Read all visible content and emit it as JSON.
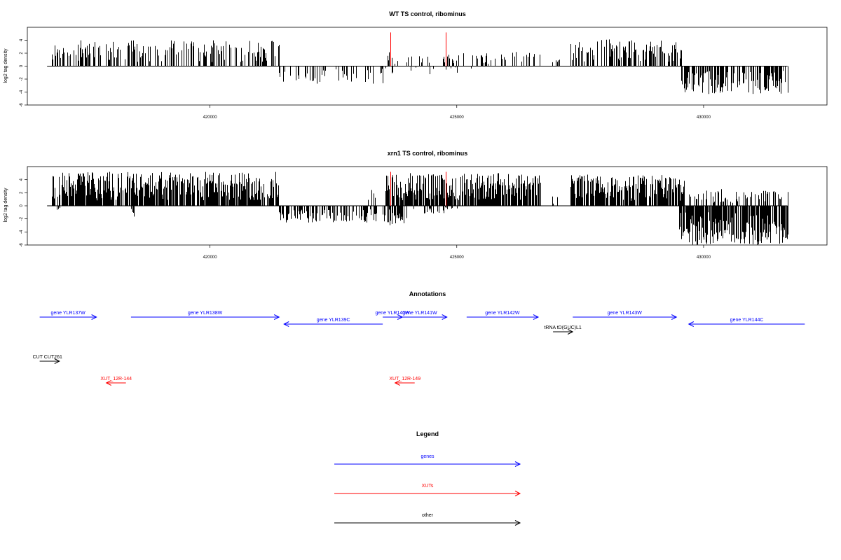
{
  "colors": {
    "gene": "#0000ff",
    "xut": "#ff0000",
    "other": "#000000",
    "signal": "#000000",
    "marker": "#ff0000"
  },
  "tracks": [
    {
      "title": "WT TS control, ribominus",
      "ylabel": "log2 tag density"
    },
    {
      "title": "xrn1 TS control, ribominus",
      "ylabel": "log2 tag density"
    }
  ],
  "annotations_title": "Annotations",
  "legend_title": "Legend",
  "legend": [
    {
      "label": "genes",
      "type": "gene"
    },
    {
      "label": "XUTs",
      "type": "xut"
    },
    {
      "label": "other",
      "type": "other"
    }
  ],
  "chart_data": [
    {
      "type": "bar",
      "title": "WT TS control, ribominus",
      "ylabel": "log2 tag density",
      "xlabel": "",
      "xlim": [
        416300,
        432500
      ],
      "ylim": [
        -6,
        6
      ],
      "x_ticks": [
        420000,
        425000,
        430000
      ],
      "y_ticks": [
        4,
        2,
        0,
        -2,
        -4,
        -6
      ],
      "baseline_range": [
        416700,
        431700
      ],
      "markers": [
        423650,
        424780
      ],
      "plus_regions": [
        {
          "start": 416800,
          "end": 421400,
          "max": 4.0,
          "density": 0.45,
          "seed": 11
        },
        {
          "start": 423600,
          "end": 423680,
          "max": 3.0,
          "density": 0.5,
          "seed": 12
        },
        {
          "start": 423700,
          "end": 424750,
          "max": 1.6,
          "density": 0.15,
          "seed": 13
        },
        {
          "start": 424800,
          "end": 426700,
          "max": 2.2,
          "density": 0.3,
          "seed": 14
        },
        {
          "start": 426900,
          "end": 427200,
          "max": 1.5,
          "density": 0.2,
          "seed": 15
        },
        {
          "start": 427300,
          "end": 429550,
          "max": 4.2,
          "density": 0.5,
          "seed": 16
        }
      ],
      "minus_regions": [
        {
          "start": 421400,
          "end": 423500,
          "max": 2.8,
          "density": 0.25,
          "seed": 21
        },
        {
          "start": 423500,
          "end": 425300,
          "max": 1.3,
          "density": 0.08,
          "seed": 22
        },
        {
          "start": 429550,
          "end": 431700,
          "max": 4.3,
          "density": 0.6,
          "seed": 23
        }
      ]
    },
    {
      "type": "bar",
      "title": "xrn1 TS control, ribominus",
      "ylabel": "log2 tag density",
      "xlabel": "",
      "xlim": [
        416300,
        432500
      ],
      "ylim": [
        -6,
        6
      ],
      "x_ticks": [
        420000,
        425000,
        430000
      ],
      "y_ticks": [
        4,
        2,
        0,
        -2,
        -4,
        -6
      ],
      "baseline_range": [
        416700,
        431700
      ],
      "markers": [
        423650,
        424780
      ],
      "plus_regions": [
        {
          "start": 416800,
          "end": 421400,
          "max": 5.2,
          "density": 0.85,
          "seed": 31
        },
        {
          "start": 423200,
          "end": 423400,
          "max": 2.5,
          "density": 0.4,
          "seed": 32
        },
        {
          "start": 423550,
          "end": 426700,
          "max": 5.0,
          "density": 0.8,
          "seed": 33
        },
        {
          "start": 426900,
          "end": 427100,
          "max": 1.5,
          "density": 0.2,
          "seed": 34
        },
        {
          "start": 427300,
          "end": 429600,
          "max": 4.8,
          "density": 0.85,
          "seed": 35
        },
        {
          "start": 429700,
          "end": 431700,
          "max": 2.6,
          "density": 0.3,
          "seed": 36
        }
      ],
      "minus_regions": [
        {
          "start": 416900,
          "end": 417000,
          "max": 0.6,
          "density": 0.3,
          "seed": 41
        },
        {
          "start": 418400,
          "end": 418500,
          "max": 1.8,
          "density": 0.3,
          "seed": 42
        },
        {
          "start": 421400,
          "end": 423400,
          "max": 2.6,
          "density": 0.55,
          "seed": 43
        },
        {
          "start": 423500,
          "end": 424000,
          "max": 3.0,
          "density": 0.7,
          "seed": 44
        },
        {
          "start": 424000,
          "end": 425000,
          "max": 1.2,
          "density": 0.2,
          "seed": 45
        },
        {
          "start": 429500,
          "end": 431700,
          "max": 6.0,
          "density": 0.85,
          "seed": 46
        }
      ]
    }
  ],
  "annotations": [
    {
      "label": "gene YLR137W",
      "type": "gene",
      "start": 416550,
      "end": 417700,
      "strand": "+",
      "row": 0
    },
    {
      "label": "gene YLR138W",
      "type": "gene",
      "start": 418400,
      "end": 421400,
      "strand": "+",
      "row": 0
    },
    {
      "label": "gene YLR139C",
      "type": "gene",
      "start": 421500,
      "end": 423500,
      "strand": "-",
      "row": 1
    },
    {
      "label": "gene YLR140W",
      "type": "gene",
      "start": 423500,
      "end": 423650,
      "strand": "+",
      "row": 0
    },
    {
      "label": "gene YLR141W",
      "type": "gene",
      "start": 423700,
      "end": 424800,
      "strand": "+",
      "row": 0
    },
    {
      "label": "gene YLR142W",
      "type": "gene",
      "start": 425200,
      "end": 426650,
      "strand": "+",
      "row": 0
    },
    {
      "label": "gene YLR143W",
      "type": "gene",
      "start": 427350,
      "end": 429450,
      "strand": "+",
      "row": 0
    },
    {
      "label": "gene YLR144C",
      "type": "gene",
      "start": 429700,
      "end": 432050,
      "strand": "-",
      "row": 1
    },
    {
      "label": "tRNA tD(GUC)L1",
      "type": "other",
      "start": 426950,
      "end": 427050,
      "strand": "+",
      "row": 2
    },
    {
      "label": "CUT CUT261",
      "type": "other",
      "start": 416550,
      "end": 416950,
      "strand": "+",
      "row": 3
    },
    {
      "label": "XUT_12R-144",
      "type": "xut",
      "start": 417900,
      "end": 418200,
      "strand": "-",
      "row": 4
    },
    {
      "label": "XUT_12R-149",
      "type": "xut",
      "start": 423750,
      "end": 424100,
      "strand": "-",
      "row": 4
    }
  ]
}
